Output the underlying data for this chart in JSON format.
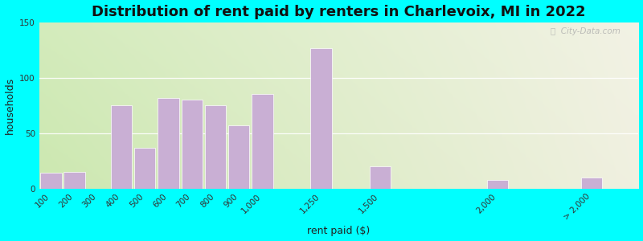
{
  "title": "Distribution of rent paid by renters in Charlevoix, MI in 2022",
  "xlabel": "rent paid ($)",
  "ylabel": "households",
  "categories": [
    "100",
    "200",
    "300",
    "400",
    "500",
    "600",
    "700",
    "800",
    "900",
    "1,000",
    "1,250",
    "1,500",
    "2,000",
    "> 2,000"
  ],
  "values": [
    14,
    15,
    0,
    75,
    37,
    82,
    80,
    75,
    57,
    85,
    127,
    20,
    8,
    10
  ],
  "bar_color": "#c9afd4",
  "bar_edgecolor": "#ffffff",
  "ylim": [
    0,
    150
  ],
  "yticks": [
    0,
    50,
    100,
    150
  ],
  "bg_color_left": "#cce8b0",
  "bg_color_right": "#f0f0e0",
  "outer_bg": "#00ffff",
  "title_fontsize": 13,
  "axis_label_fontsize": 9,
  "tick_fontsize": 7.5,
  "watermark": "City-Data.com"
}
